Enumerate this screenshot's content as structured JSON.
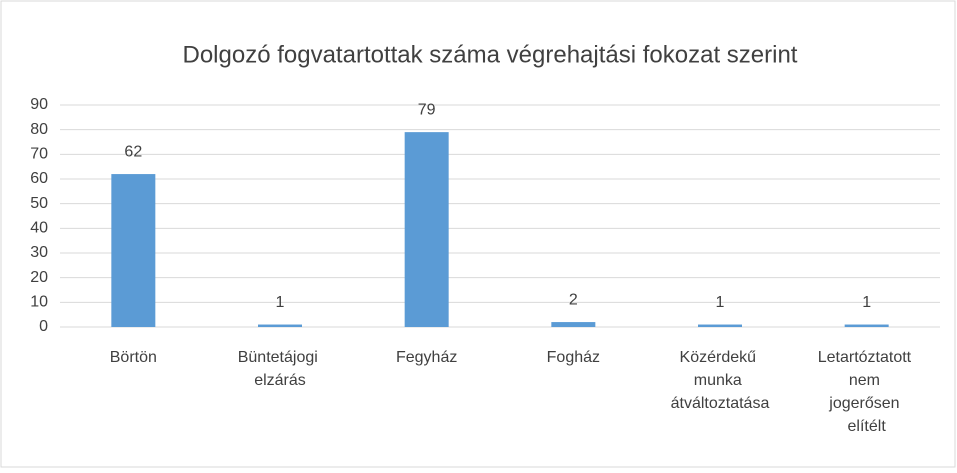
{
  "chart_data": {
    "type": "bar",
    "title": "Dolgozó fogvatartottak száma végrehajtási fokozat szerint",
    "categories": [
      "Börtön",
      "Büntetájogi elzárás",
      "Fegyház",
      "Fogház",
      "Közérdekű munka átváltoztatása",
      "Letartóztatott nem jogerősen elítélt"
    ],
    "values": [
      62,
      1,
      79,
      2,
      1,
      1
    ],
    "color": "#5b9bd5",
    "ylim": [
      0,
      90
    ],
    "yticks": [
      0,
      10,
      20,
      30,
      40,
      50,
      60,
      70,
      80,
      90
    ],
    "grid": true
  }
}
